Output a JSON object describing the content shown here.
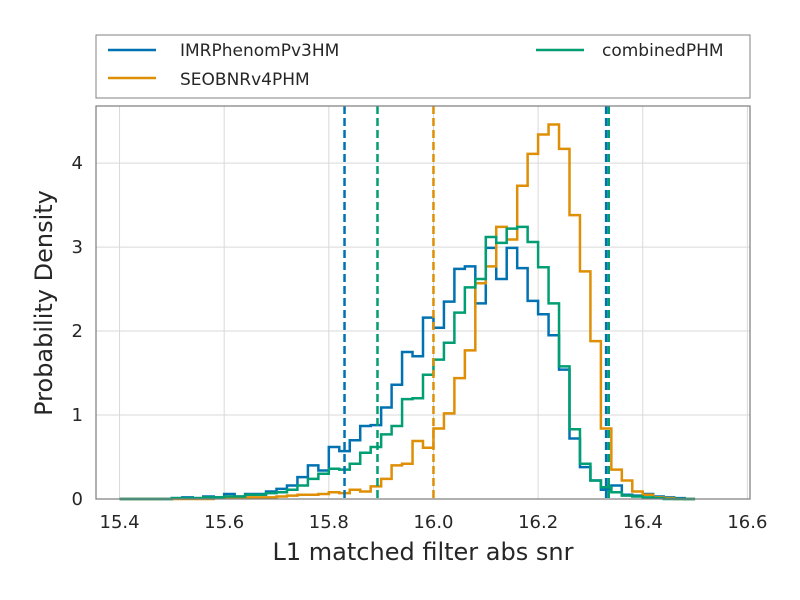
{
  "chart_data": {
    "type": "step-histogram",
    "title": "",
    "xlabel": "L1 matched filter abs snr",
    "ylabel": "Probability Density",
    "xlim": [
      15.355,
      16.605
    ],
    "ylim": [
      0,
      4.68
    ],
    "xticks": [
      15.4,
      15.6,
      15.8,
      16.0,
      16.2,
      16.4,
      16.6
    ],
    "xtick_labels": [
      "15.4",
      "15.6",
      "15.8",
      "16.0",
      "16.2",
      "16.4",
      "16.6"
    ],
    "yticks": [
      0,
      1,
      2,
      3,
      4
    ],
    "ytick_labels": [
      "0",
      "1",
      "2",
      "3",
      "4"
    ],
    "grid": true,
    "legend_position": "top, outside plot, 2 columns",
    "series": [
      {
        "name": "IMRPhenomPv3HM",
        "color": "#0072b2",
        "bins_x": [
          15.4,
          15.5,
          15.52,
          15.54,
          15.56,
          15.58,
          15.6,
          15.62,
          15.64,
          15.66,
          15.68,
          15.7,
          15.72,
          15.74,
          15.76,
          15.78,
          15.8,
          15.82,
          15.84,
          15.86,
          15.88,
          15.9,
          15.92,
          15.94,
          15.96,
          15.98,
          16.0,
          16.02,
          16.04,
          16.06,
          16.08,
          16.1,
          16.12,
          16.14,
          16.16,
          16.18,
          16.2,
          16.22,
          16.24,
          16.26,
          16.28,
          16.3,
          16.32,
          16.34,
          16.36,
          16.38,
          16.4,
          16.42,
          16.44,
          16.46,
          16.48,
          16.5
        ],
        "values": [
          0.0,
          0.01,
          0.02,
          0.01,
          0.03,
          0.02,
          0.06,
          0.03,
          0.06,
          0.06,
          0.09,
          0.12,
          0.16,
          0.26,
          0.4,
          0.34,
          0.62,
          0.57,
          0.7,
          0.87,
          0.88,
          1.09,
          1.36,
          1.75,
          1.7,
          2.16,
          2.04,
          2.35,
          2.74,
          2.77,
          2.33,
          2.99,
          2.62,
          2.99,
          2.75,
          2.36,
          2.2,
          1.95,
          1.54,
          0.72,
          0.38,
          0.22,
          0.11,
          0.16,
          0.05,
          0.04,
          0.06,
          0.03,
          0.02,
          0.01,
          0.0,
          0.0
        ],
        "median_line": 15.83,
        "upper_line": 16.33
      },
      {
        "name": "SEOBNRv4PHM",
        "color": "#de8f05",
        "bins_x": [
          15.4,
          15.5,
          15.52,
          15.54,
          15.56,
          15.58,
          15.6,
          15.62,
          15.64,
          15.66,
          15.68,
          15.7,
          15.72,
          15.74,
          15.76,
          15.78,
          15.8,
          15.82,
          15.84,
          15.86,
          15.88,
          15.9,
          15.92,
          15.94,
          15.96,
          15.98,
          16.0,
          16.02,
          16.04,
          16.06,
          16.08,
          16.1,
          16.12,
          16.14,
          16.16,
          16.18,
          16.2,
          16.22,
          16.24,
          16.26,
          16.28,
          16.3,
          16.32,
          16.34,
          16.36,
          16.38,
          16.4,
          16.42,
          16.44,
          16.46,
          16.48,
          16.5
        ],
        "values": [
          0.0,
          0.0,
          0.0,
          0.0,
          0.0,
          0.01,
          0.01,
          0.01,
          0.02,
          0.02,
          0.02,
          0.03,
          0.04,
          0.05,
          0.05,
          0.06,
          0.08,
          0.07,
          0.11,
          0.09,
          0.15,
          0.24,
          0.4,
          0.42,
          0.69,
          0.61,
          0.84,
          1.02,
          1.44,
          1.77,
          2.57,
          2.77,
          3.24,
          3.09,
          3.73,
          4.11,
          4.34,
          4.46,
          4.17,
          3.38,
          2.71,
          1.88,
          0.84,
          0.35,
          0.22,
          0.09,
          0.05,
          0.02,
          0.01,
          0.0,
          0.0,
          0.0
        ],
        "median_line": 16.0,
        "upper_line": 16.335
      },
      {
        "name": "combinedPHM",
        "color": "#029e73",
        "bins_x": [
          15.4,
          15.5,
          15.52,
          15.54,
          15.56,
          15.58,
          15.6,
          15.62,
          15.64,
          15.66,
          15.68,
          15.7,
          15.72,
          15.74,
          15.76,
          15.78,
          15.8,
          15.82,
          15.84,
          15.86,
          15.88,
          15.9,
          15.92,
          15.94,
          15.96,
          15.98,
          16.0,
          16.02,
          16.04,
          16.06,
          16.08,
          16.1,
          16.12,
          16.14,
          16.16,
          16.18,
          16.2,
          16.22,
          16.24,
          16.26,
          16.28,
          16.3,
          16.32,
          16.34,
          16.36,
          16.38,
          16.4,
          16.42,
          16.44,
          16.46,
          16.48,
          16.5
        ],
        "values": [
          0.0,
          0.01,
          0.01,
          0.01,
          0.02,
          0.02,
          0.03,
          0.03,
          0.05,
          0.05,
          0.07,
          0.08,
          0.11,
          0.16,
          0.24,
          0.3,
          0.36,
          0.35,
          0.42,
          0.55,
          0.62,
          0.77,
          0.87,
          1.19,
          1.2,
          1.48,
          1.66,
          1.86,
          2.22,
          2.52,
          2.62,
          3.12,
          3.05,
          3.22,
          3.24,
          3.06,
          2.76,
          2.33,
          1.58,
          0.83,
          0.42,
          0.22,
          0.14,
          0.08,
          0.04,
          0.03,
          0.02,
          0.01,
          0.0,
          0.0,
          0.0,
          0.0
        ],
        "median_line": 15.893,
        "upper_line": 16.335
      }
    ]
  }
}
